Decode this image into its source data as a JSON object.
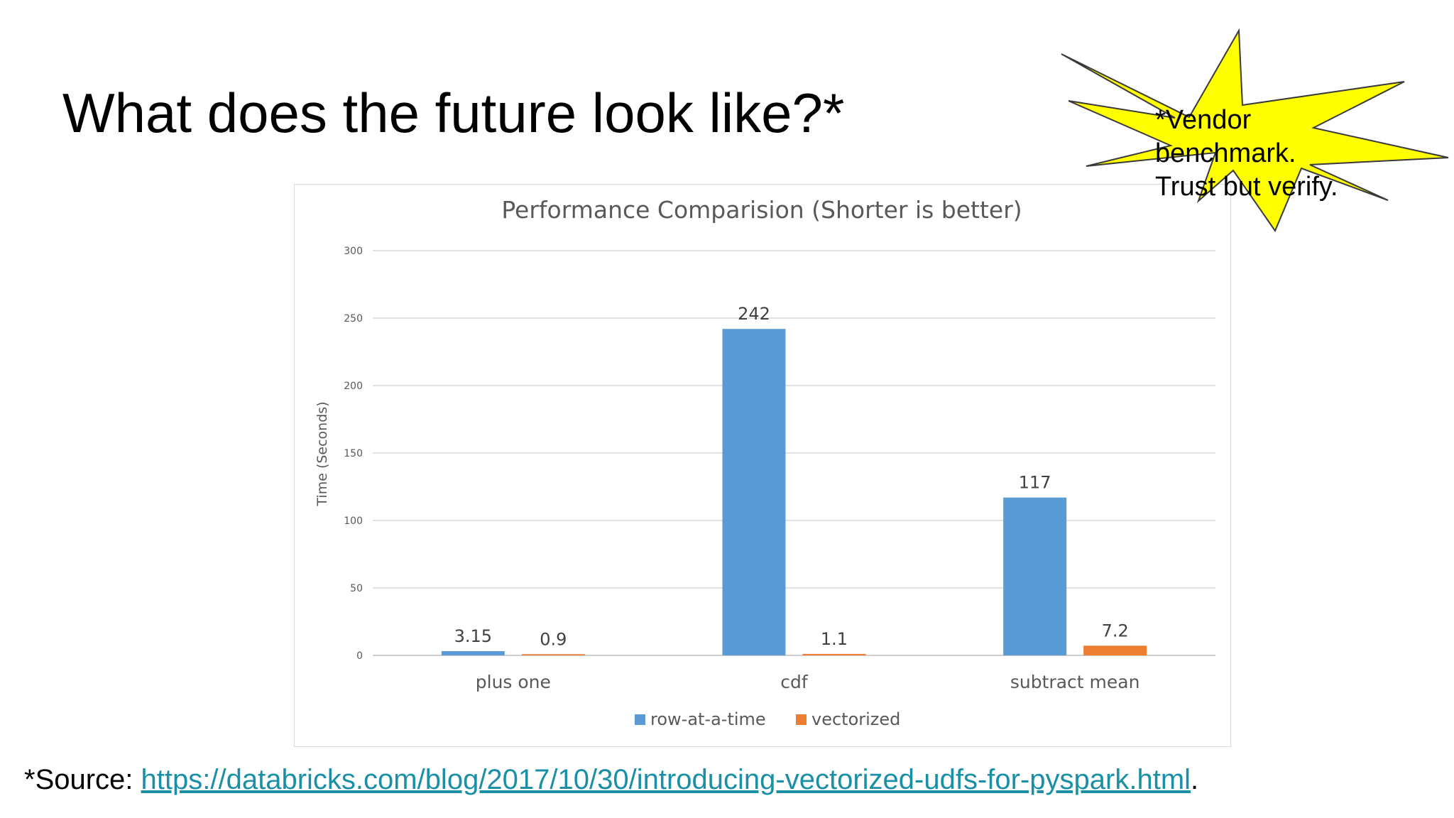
{
  "slide": {
    "title": "What does the future look like?*",
    "callout_lines": [
      "*Vendor",
      "benchmark.",
      "Trust but verify."
    ],
    "callout_color": "#ffff00",
    "source_prefix": "*Source: ",
    "source_url": "https://databricks.com/blog/2017/10/30/introducing-vectorized-udfs-for-pyspark.html",
    "source_suffix": ".",
    "link_color": "#1a8fa6"
  },
  "chart_data": {
    "type": "bar",
    "title": "Performance Comparision (Shorter is better)",
    "xlabel": "",
    "ylabel": "Time (Seconds)",
    "categories": [
      "plus one",
      "cdf",
      "subtract mean"
    ],
    "series": [
      {
        "name": "row-at-a-time",
        "values": [
          3.15,
          242,
          117
        ],
        "labels": [
          "3.15",
          "242",
          "117"
        ],
        "color": "#5b9bd5"
      },
      {
        "name": "vectorized",
        "values": [
          0.9,
          1.1,
          7.2
        ],
        "labels": [
          "0.9",
          "1.1",
          "7.2"
        ],
        "color": "#ed7d31"
      }
    ],
    "ylim": [
      0,
      300
    ],
    "yticks": [
      0,
      50,
      100,
      150,
      200,
      250,
      300
    ],
    "grid": true,
    "legend": "bottom"
  }
}
